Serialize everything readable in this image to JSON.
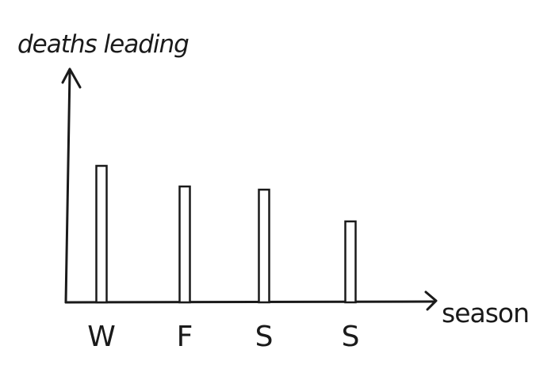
{
  "chart_data": {
    "type": "bar",
    "title": "",
    "xlabel": "season",
    "ylabel": "deaths leading",
    "categories": [
      "W",
      "F",
      "S",
      "S"
    ],
    "values": [
      172,
      146,
      142,
      102
    ],
    "ylim": [
      0,
      300
    ],
    "grid": false,
    "legend": "none",
    "colors": {
      "ink": "#1a1a1a",
      "bar_fill": "#ffffff"
    }
  }
}
